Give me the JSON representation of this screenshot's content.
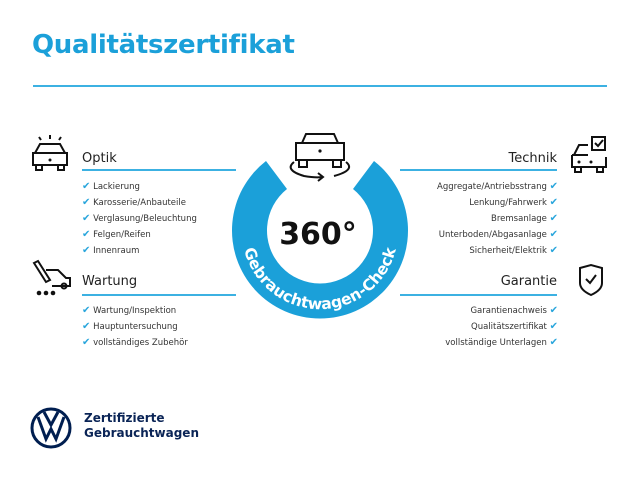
{
  "title": "Qualitätszertifikat",
  "colors": {
    "accent": "#1ba0d9",
    "brand_navy": "#001e50"
  },
  "center": {
    "degrees": "360°",
    "ring_text": "Gebrauchtwagen-Check",
    "icon": "car-rotate-icon"
  },
  "sections": {
    "optik": {
      "heading": "Optik",
      "icon": "car-lights-icon",
      "items": [
        "Lackierung",
        "Karosserie/Anbauteile",
        "Verglasung/Beleuchtung",
        "Felgen/Reifen",
        "Innenraum"
      ]
    },
    "wartung": {
      "heading": "Wartung",
      "icon": "service-tools-icon",
      "items": [
        "Wartung/Inspektion",
        "Hauptuntersuchung",
        "vollständiges Zubehör"
      ]
    },
    "technik": {
      "heading": "Technik",
      "icon": "car-checkbox-icon",
      "items": [
        "Aggregate/Antriebsstrang",
        "Lenkung/Fahrwerk",
        "Bremsanlage",
        "Unterboden/Abgasanlage",
        "Sicherheit/Elektrik"
      ]
    },
    "garantie": {
      "heading": "Garantie",
      "icon": "shield-check-icon",
      "items": [
        "Garantienachweis",
        "Qualitätszertifikat",
        "vollständige Unterlagen"
      ]
    }
  },
  "check_mark": "✔",
  "brand": {
    "line1": "Zertifizierte",
    "line2": "Gebrauchtwagen",
    "logo": "vw-logo-icon"
  }
}
